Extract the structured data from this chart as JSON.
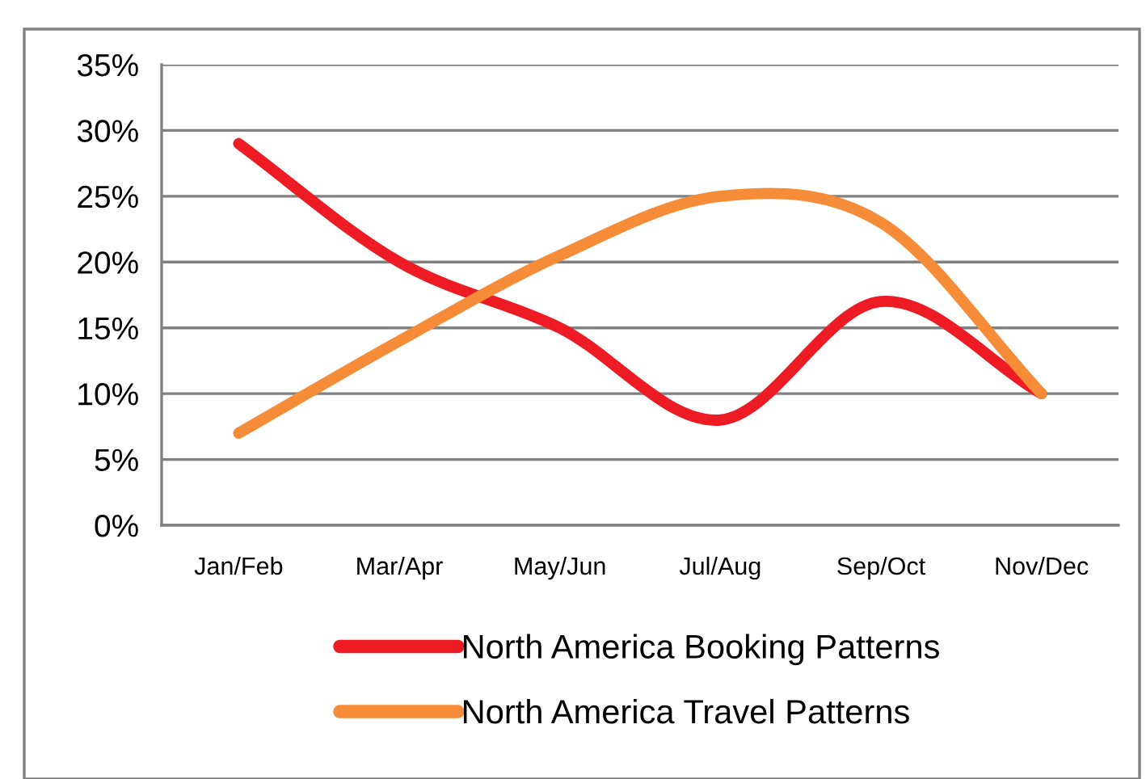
{
  "chart_data": {
    "type": "line",
    "categories": [
      "Jan/Feb",
      "Mar/Apr",
      "May/Jun",
      "Jul/Aug",
      "Sep/Oct",
      "Nov/Dec"
    ],
    "series": [
      {
        "name": "North America Booking Patterns",
        "color": "#ed1c24",
        "values": [
          29,
          20,
          15,
          8,
          17,
          10
        ]
      },
      {
        "name": "North America Travel Patterns",
        "color": "#f68b38",
        "values": [
          7,
          14,
          20.5,
          25,
          23,
          10
        ]
      }
    ],
    "ylim": [
      0,
      35
    ],
    "yticks": [
      {
        "value": 0,
        "label": "0%"
      },
      {
        "value": 5,
        "label": "5%"
      },
      {
        "value": 10,
        "label": "10%"
      },
      {
        "value": 15,
        "label": "15%"
      },
      {
        "value": 20,
        "label": "20%"
      },
      {
        "value": 25,
        "label": "25%"
      },
      {
        "value": 30,
        "label": "30%"
      },
      {
        "value": 35,
        "label": "35%"
      }
    ],
    "grid": "y",
    "legend": "bottom",
    "marker": "none",
    "line_style": "solid"
  }
}
